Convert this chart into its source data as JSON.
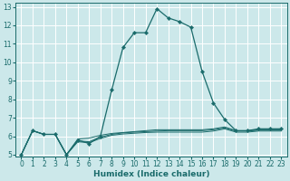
{
  "title": "",
  "xlabel": "Humidex (Indice chaleur)",
  "bg_color": "#cce8ea",
  "grid_color": "#ffffff",
  "line_color": "#1a6b6b",
  "xlim": [
    -0.5,
    23.5
  ],
  "ylim": [
    4.9,
    13.2
  ],
  "xticks": [
    0,
    1,
    2,
    3,
    4,
    5,
    6,
    7,
    8,
    9,
    10,
    11,
    12,
    13,
    14,
    15,
    16,
    17,
    18,
    19,
    20,
    21,
    22,
    23
  ],
  "yticks": [
    5,
    6,
    7,
    8,
    9,
    10,
    11,
    12,
    13
  ],
  "series_main": {
    "x": [
      0,
      1,
      2,
      3,
      4,
      5,
      6,
      7,
      8,
      9,
      10,
      11,
      12,
      13,
      14,
      15,
      16,
      17,
      18,
      19,
      20,
      21,
      22,
      23
    ],
    "y": [
      5.0,
      6.3,
      6.1,
      6.1,
      5.0,
      5.8,
      5.6,
      6.0,
      8.5,
      10.8,
      11.6,
      11.6,
      12.9,
      12.4,
      12.2,
      11.9,
      9.5,
      7.8,
      6.9,
      6.3,
      6.3,
      6.4,
      6.4,
      6.4
    ]
  },
  "series_flat1": {
    "x": [
      0,
      1,
      2,
      3,
      4,
      5,
      6,
      7,
      8,
      9,
      10,
      11,
      12,
      13,
      14,
      15,
      16,
      17,
      18,
      19,
      20,
      21,
      22,
      23
    ],
    "y": [
      5.0,
      6.3,
      6.1,
      6.1,
      5.0,
      5.85,
      5.9,
      6.05,
      6.15,
      6.2,
      6.25,
      6.3,
      6.35,
      6.35,
      6.35,
      6.35,
      6.35,
      6.4,
      6.5,
      6.3,
      6.3,
      6.35,
      6.35,
      6.35
    ]
  },
  "series_flat2": {
    "x": [
      0,
      1,
      2,
      3,
      4,
      5,
      6,
      7,
      8,
      9,
      10,
      11,
      12,
      13,
      14,
      15,
      16,
      17,
      18,
      19,
      20,
      21,
      22,
      23
    ],
    "y": [
      5.0,
      6.3,
      6.1,
      6.1,
      5.0,
      5.75,
      5.7,
      5.95,
      6.1,
      6.18,
      6.22,
      6.25,
      6.28,
      6.3,
      6.3,
      6.3,
      6.3,
      6.35,
      6.45,
      6.28,
      6.28,
      6.33,
      6.33,
      6.33
    ]
  },
  "series_flat3": {
    "x": [
      0,
      1,
      2,
      3,
      4,
      5,
      6,
      7,
      8,
      9,
      10,
      11,
      12,
      13,
      14,
      15,
      16,
      17,
      18,
      19,
      20,
      21,
      22,
      23
    ],
    "y": [
      5.0,
      6.3,
      6.1,
      6.1,
      5.0,
      5.7,
      5.65,
      5.88,
      6.05,
      6.12,
      6.16,
      6.2,
      6.22,
      6.22,
      6.22,
      6.22,
      6.22,
      6.28,
      6.4,
      6.22,
      6.22,
      6.28,
      6.28,
      6.28
    ]
  }
}
